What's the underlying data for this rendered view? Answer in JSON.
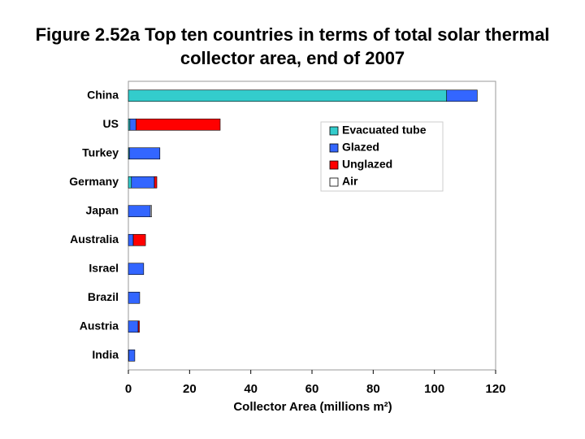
{
  "chart_data": {
    "type": "stacked-barh",
    "title": "Figure 2.52a  Top ten countries in terms of total solar thermal collector area, end of 2007",
    "xlabel": "Collector Area (millions m²)",
    "categories": [
      "China",
      "US",
      "Turkey",
      "Germany",
      "Japan",
      "Australia",
      "Israel",
      "Brazil",
      "Austria",
      "India"
    ],
    "series": [
      {
        "name": "Evacuated tube",
        "color": "#33cccc",
        "values": [
          104,
          0.5,
          0.3,
          1,
          0,
          0,
          0,
          0,
          0,
          0.1
        ]
      },
      {
        "name": "Glazed",
        "color": "#3366ff",
        "values": [
          10,
          2,
          10,
          7.5,
          7.2,
          1.6,
          5,
          3.7,
          3.2,
          2
        ]
      },
      {
        "name": "Unglazed",
        "color": "#ff0000",
        "values": [
          0,
          27.5,
          0,
          0.8,
          0,
          4,
          0,
          0,
          0.4,
          0
        ]
      },
      {
        "name": "Air",
        "color": "#ffffff",
        "values": [
          0,
          0,
          0,
          0,
          0.4,
          0,
          0,
          0,
          0,
          0
        ]
      }
    ],
    "xlim": [
      0,
      120
    ],
    "xticks": [
      0,
      20,
      40,
      60,
      80,
      100,
      120
    ]
  }
}
